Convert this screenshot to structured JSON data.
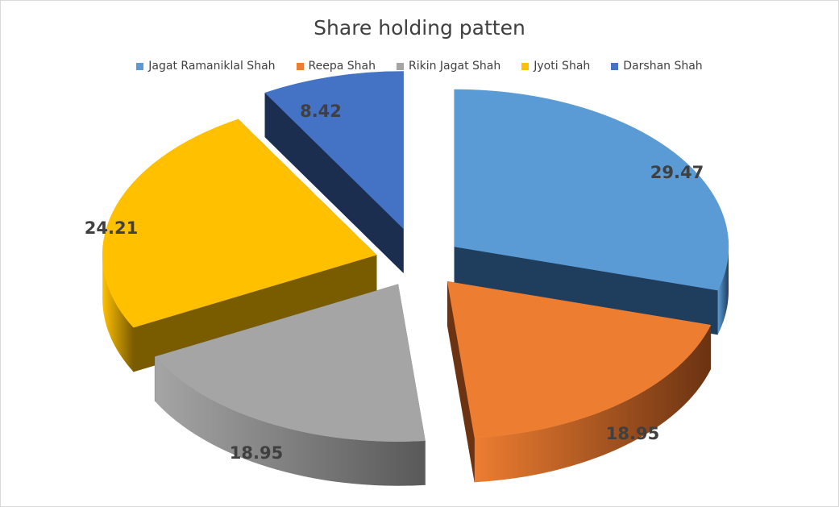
{
  "chart_data": {
    "type": "pie",
    "variant": "3d-exploded",
    "title": "Share holding patten",
    "legend_position": "top",
    "slices": [
      {
        "name": "Jagat Ramaniklal Shah",
        "value": 29.47,
        "label": "29.47",
        "color": "#5b9bd5",
        "dark": "#1f3d5c"
      },
      {
        "name": "Reepa Shah",
        "value": 18.95,
        "label": "18.95",
        "color": "#ed7d31",
        "dark": "#6b3312"
      },
      {
        "name": "Rikin Jagat Shah",
        "value": 18.95,
        "label": "18.95",
        "color": "#a5a5a5",
        "dark": "#595959"
      },
      {
        "name": "Jyoti Shah",
        "value": 24.21,
        "label": "24.21",
        "color": "#ffc000",
        "dark": "#7a5c00"
      },
      {
        "name": "Darshan Shah",
        "value": 8.42,
        "label": "8.42",
        "color": "#4472c4",
        "dark": "#1c2e50"
      }
    ]
  }
}
